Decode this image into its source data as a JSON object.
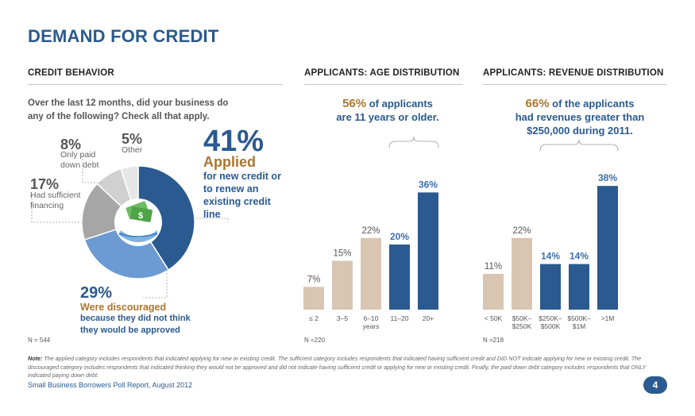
{
  "title": "DEMAND FOR CREDIT",
  "sections": {
    "credit_behavior": "CREDIT BEHAVIOR",
    "age_distribution": "APPLICANTS: AGE DISTRIBUTION",
    "revenue_distribution": "APPLICANTS: REVENUE DISTRIBUTION"
  },
  "question": "Over the last 12 months, did your business do any of the following? Check all that apply.",
  "pie_labels": {
    "paid_down": {
      "pct": "8%",
      "text": "Only paid down debt"
    },
    "other": {
      "pct": "5%",
      "text": "Other"
    },
    "sufficient": {
      "pct": "17%",
      "text": "Had sufficient financing"
    }
  },
  "applied_callout": {
    "pct": "41%",
    "word": "Applied",
    "desc": "for new credit or to renew an existing credit line"
  },
  "discouraged_callout": {
    "pct": "29%",
    "word": "Were discouraged",
    "desc": "because they did not think they would be approved"
  },
  "n_labels": {
    "behavior": "N = 544",
    "age": "N =220",
    "revenue": "N =218"
  },
  "age_headline": {
    "pct": "56%",
    "text1": " of applicants",
    "text2": "are 11 years or older."
  },
  "revenue_headline": {
    "pct": "66%",
    "text1": " of the applicants",
    "text2": "had revenues greater than",
    "text3": "$250,000 during 2011."
  },
  "note": {
    "label": "Note:",
    "text": "The applied category includes respondents that indicated applying for new or existing credit. The sufficient category includes respondents that indicated having sufficient credit and DID NOT indicate applying for new or existing credit. The discouraged category includes respondents that indicated thinking they would not be approved and did not indicate having sufficient credit or applying for new or existing credit. Finally, the paid down debt category includes respondents that ONLY indicated paying down debt."
  },
  "footer": "Small Business Borrowers Poll Report, August 2012",
  "page_number": "4",
  "colors": {
    "navy": "#2a5a8f",
    "light_blue": "#6b9bd2",
    "gray": "#a6a6a6",
    "light_gray": "#d0d0d0",
    "tan": "#d9c5b2",
    "gold": "#a8762f"
  },
  "chart_data": [
    {
      "type": "pie",
      "title": "CREDIT BEHAVIOR",
      "categories": [
        "Applied",
        "Were discouraged",
        "Had sufficient financing",
        "Only paid down debt",
        "Other"
      ],
      "values": [
        41,
        29,
        17,
        8,
        5
      ]
    },
    {
      "type": "bar",
      "title": "APPLICANTS: AGE DISTRIBUTION",
      "categories": [
        "≤ 2",
        "3–5",
        "6–10",
        "11–20",
        "20+"
      ],
      "values": [
        7,
        15,
        22,
        20,
        36
      ],
      "data_labels": [
        "7%",
        "15%",
        "22%",
        "20%",
        "36%"
      ],
      "xlabel": "years",
      "highlight": [
        false,
        false,
        false,
        true,
        true
      ]
    },
    {
      "type": "bar",
      "title": "APPLICANTS: REVENUE DISTRIBUTION",
      "categories": [
        [
          "< 50K"
        ],
        [
          "$50K–",
          "$250K"
        ],
        [
          "$250K–",
          "$500K"
        ],
        [
          "$500K–",
          "$1M"
        ],
        [
          ">1M"
        ]
      ],
      "values": [
        11,
        22,
        14,
        14,
        38
      ],
      "data_labels": [
        "11%",
        "22%",
        "14%",
        "14%",
        "38%"
      ],
      "highlight": [
        false,
        false,
        true,
        true,
        true
      ]
    }
  ]
}
